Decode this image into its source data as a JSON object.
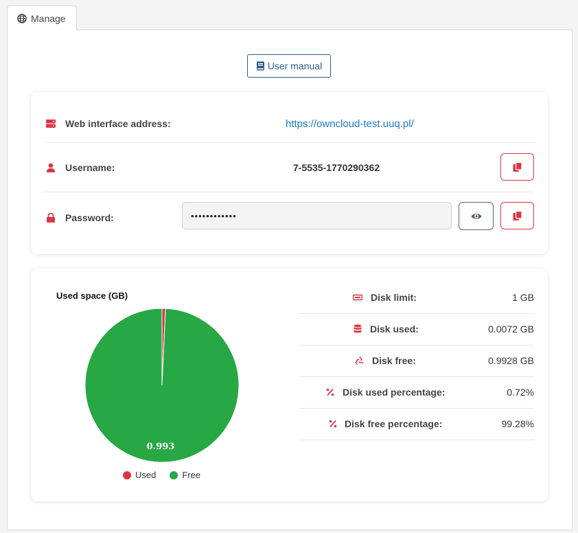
{
  "tab": {
    "label": "Manage",
    "icon": "globe-icon"
  },
  "manual_button": {
    "label": "User manual",
    "icon": "book-icon"
  },
  "credentials": {
    "web_address": {
      "label": "Web interface address:",
      "value": "https://owncloud-test.uuq.pl/",
      "icon": "server-icon"
    },
    "username": {
      "label": "Username:",
      "value": "7-5535-1770290362",
      "icon": "user-icon"
    },
    "password": {
      "label": "Password:",
      "value": "••••••••••••",
      "icon": "lock-icon"
    }
  },
  "chart_data": {
    "type": "pie",
    "title": "Used space (GB)",
    "categories": [
      "Used",
      "Free"
    ],
    "values": [
      0.0072,
      0.9928
    ],
    "data_labels": [
      "",
      "0.993"
    ],
    "colors": [
      "#dc3545",
      "#28a745"
    ],
    "legend": "bottom"
  },
  "stats": [
    {
      "label": "Disk limit:",
      "value": "1 GB",
      "icon": "hdd-icon"
    },
    {
      "label": "Disk used:",
      "value": "0.0072 GB",
      "icon": "database-icon"
    },
    {
      "label": "Disk free:",
      "value": "0.9928 GB",
      "icon": "recycle-icon"
    },
    {
      "label": "Disk used percentage:",
      "value": "0.72%",
      "icon": "percent-icon"
    },
    {
      "label": "Disk free percentage:",
      "value": "99.28%",
      "icon": "percent-icon"
    }
  ],
  "colors": {
    "accent": "#dc3545",
    "link": "#1a7bc9",
    "primary_outline": "#2d5d86"
  }
}
